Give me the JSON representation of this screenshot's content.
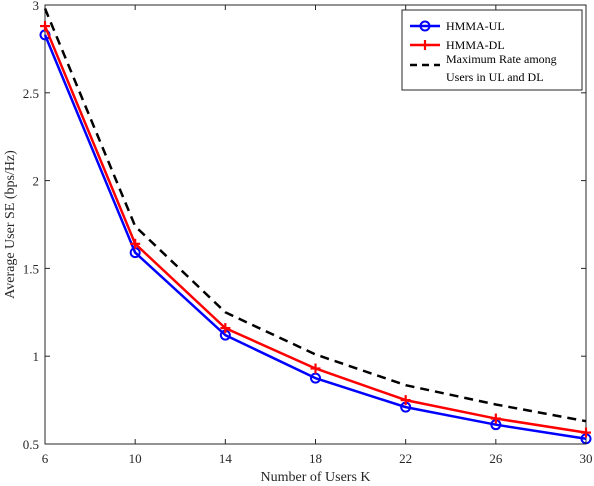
{
  "chart_data": {
    "type": "line",
    "title": "",
    "xlabel": "Number of Users K",
    "ylabel": "Average User SE (bps/Hz)",
    "x": [
      6,
      10,
      14,
      18,
      22,
      26,
      30
    ],
    "xlim": [
      6,
      30
    ],
    "ylim": [
      0.5,
      3
    ],
    "xticks": [
      "6",
      "10",
      "14",
      "18",
      "22",
      "26",
      "30"
    ],
    "yticks": [
      "0.5",
      "1",
      "1.5",
      "2",
      "2.5",
      "3"
    ],
    "grid": false,
    "legend_position": "top-right",
    "series": [
      {
        "name": "HMMA-UL",
        "values": [
          2.83,
          1.59,
          1.12,
          0.875,
          0.71,
          0.61,
          0.53
        ],
        "color": "#0000ff",
        "marker": "circle",
        "style": "solid"
      },
      {
        "name": "HMMA-DL",
        "values": [
          2.88,
          1.64,
          1.16,
          0.93,
          0.75,
          0.645,
          0.565
        ],
        "color": "#ff0000",
        "marker": "plus",
        "style": "solid"
      },
      {
        "name": "Maximum Rate among Users in UL and DL",
        "legend_lines": [
          "Maximum Rate among",
          "Users in UL and DL"
        ],
        "values": [
          2.98,
          1.74,
          1.25,
          1.01,
          0.835,
          0.725,
          0.63
        ],
        "color": "#000000",
        "marker": "none",
        "style": "dashed"
      }
    ]
  }
}
